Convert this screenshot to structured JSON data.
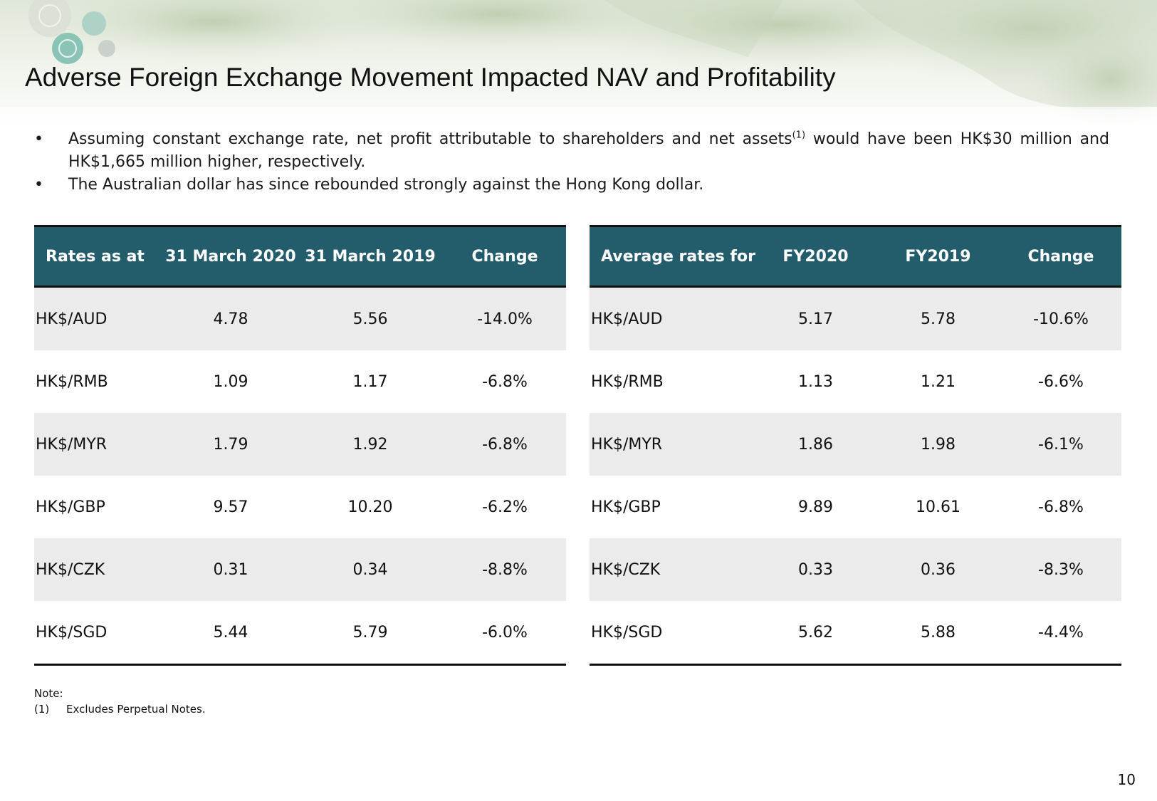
{
  "title": "Adverse Foreign Exchange Movement Impacted NAV and Profitability",
  "bullets": [
    {
      "text_before": "Assuming constant exchange rate, net profit attributable to shareholders and net assets",
      "superscript": "(1)",
      "text_after": " would have been HK$30 million and HK$1,665 million higher, respectively."
    },
    {
      "text_before": "The Australian dollar has since rebounded strongly against the Hong Kong dollar."
    }
  ],
  "bullet_icon": "•",
  "table_left": {
    "headers": [
      "Rates as at",
      "31 March 2020",
      "31 March 2019",
      "Change"
    ],
    "rows": [
      [
        "HK$/AUD",
        "4.78",
        "5.56",
        "-14.0%"
      ],
      [
        "HK$/RMB",
        "1.09",
        "1.17",
        "-6.8%"
      ],
      [
        "HK$/MYR",
        "1.79",
        "1.92",
        "-6.8%"
      ],
      [
        "HK$/GBP",
        "9.57",
        "10.20",
        "-6.2%"
      ],
      [
        "HK$/CZK",
        "0.31",
        "0.34",
        "-8.8%"
      ],
      [
        "HK$/SGD",
        "5.44",
        "5.79",
        "-6.0%"
      ]
    ]
  },
  "table_right": {
    "headers": [
      "Average rates for",
      "FY2020",
      "FY2019",
      "Change"
    ],
    "rows": [
      [
        "HK$/AUD",
        "5.17",
        "5.78",
        "-10.6%"
      ],
      [
        "HK$/RMB",
        "1.13",
        "1.21",
        "-6.6%"
      ],
      [
        "HK$/MYR",
        "1.86",
        "1.98",
        "-6.1%"
      ],
      [
        "HK$/GBP",
        "9.89",
        "10.61",
        "-6.8%"
      ],
      [
        "HK$/CZK",
        "0.33",
        "0.36",
        "-8.3%"
      ],
      [
        "HK$/SGD",
        "5.62",
        "5.88",
        "-4.4%"
      ]
    ]
  },
  "notes": {
    "heading": "Note:",
    "items": [
      {
        "num": "(1)",
        "text": "Excludes Perpetual Notes."
      }
    ]
  },
  "page_number": "10",
  "colors": {
    "header_fill": "#235c6a",
    "row_alt": "#ebebeb",
    "rule": "#111111"
  },
  "icons": [
    "tree-canopy-background",
    "circle-leaf-logo"
  ]
}
